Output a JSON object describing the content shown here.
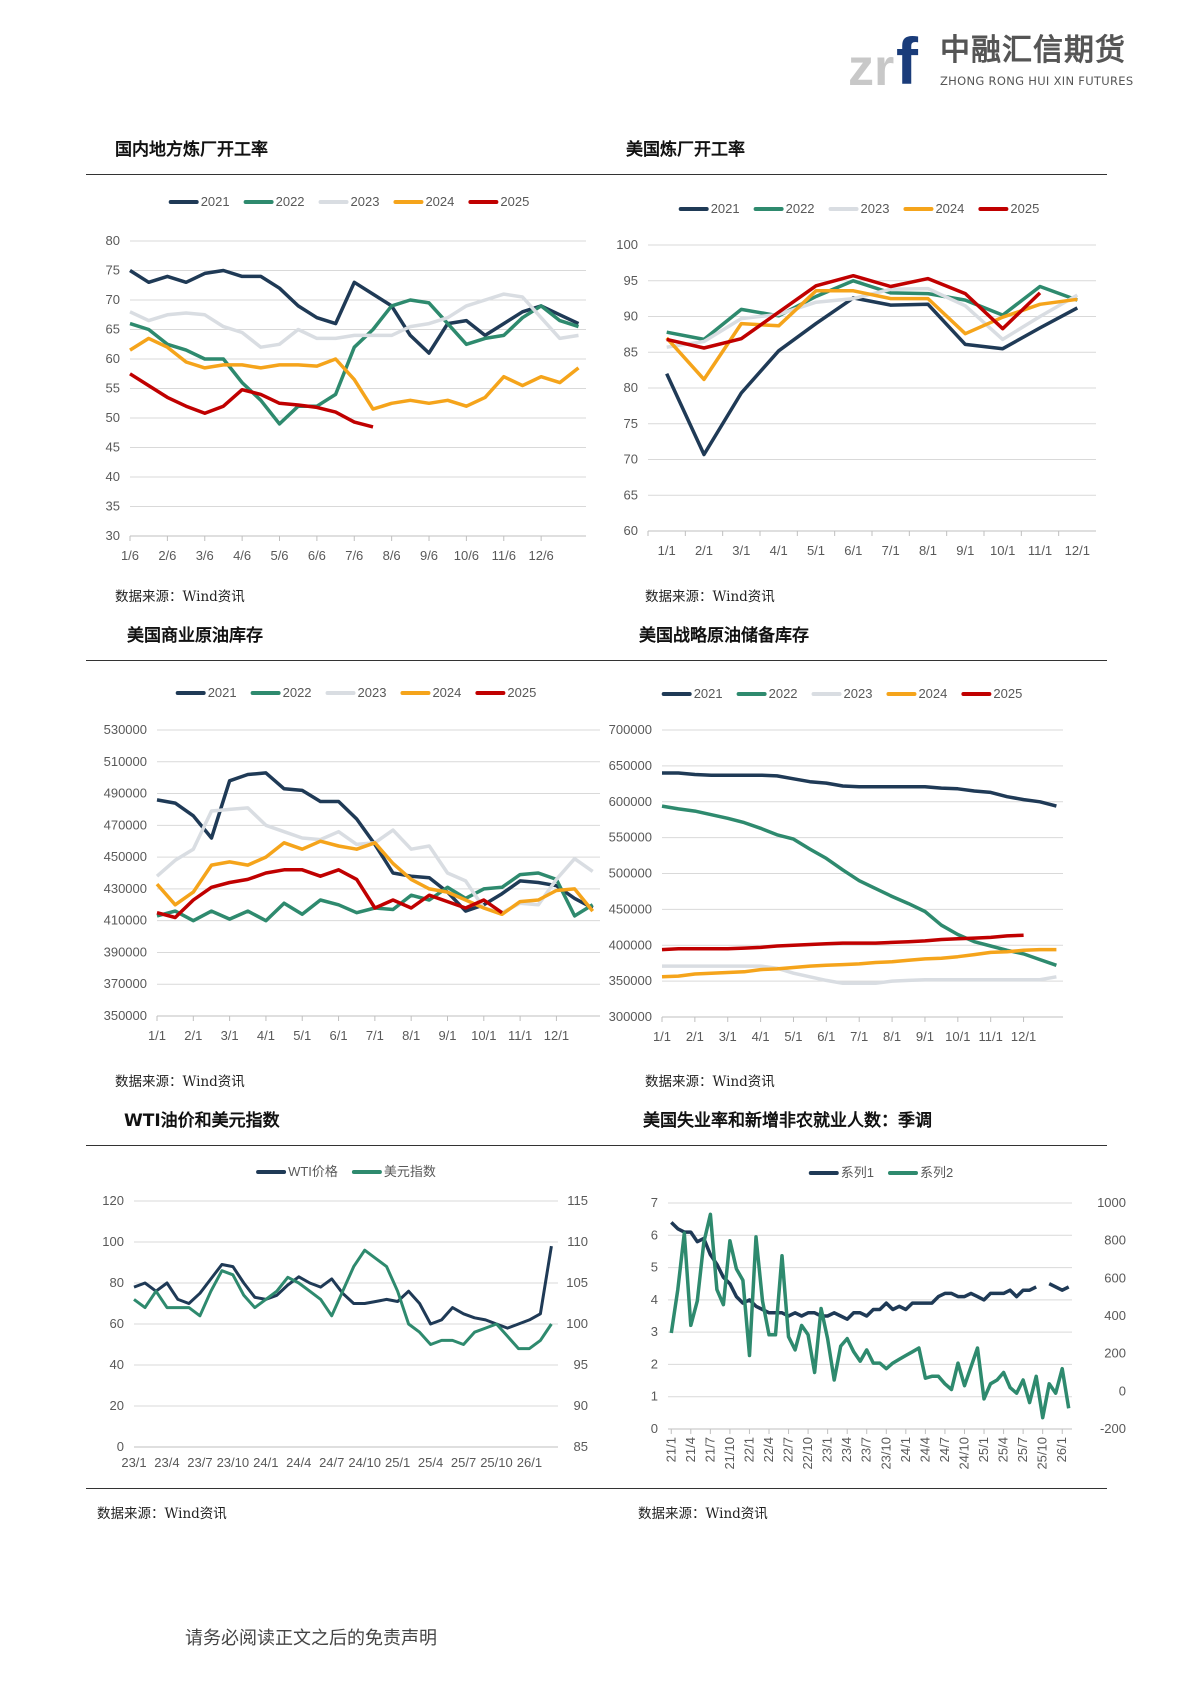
{
  "header": {
    "logo_mark": "zrf",
    "logo_cn": "中融汇信期货",
    "logo_en": "ZHONG RONG HUI XIN FUTURES",
    "logo_colors": {
      "gray": "#c8c8c8",
      "blue": "#1a3c7a"
    }
  },
  "sections": [
    {
      "title": "国内地方炼厂开工率",
      "source": "数据来源：Wind资讯"
    },
    {
      "title": "美国炼厂开工率",
      "source": "数据来源：Wind资讯"
    },
    {
      "title": "美国商业原油库存",
      "source": "数据来源：Wind资讯"
    },
    {
      "title": "美国战略原油储备库存",
      "source": "数据来源：Wind资讯"
    },
    {
      "title": "WTI油价和美元指数",
      "source": "数据来源：Wind资讯"
    },
    {
      "title": "美国失业率和新增非农就业人数：季调",
      "source": "数据来源：Wind资讯"
    }
  ],
  "footer": {
    "disclaimer": "请务必阅读正文之后的免责声明"
  },
  "chart_data": [
    {
      "type": "line",
      "xaxis": "continuous",
      "grid": true,
      "legend": "top",
      "ylim": [
        30,
        80
      ],
      "ytick_step": 5,
      "xticks": [
        "1/6",
        "2/6",
        "3/6",
        "4/6",
        "5/6",
        "6/6",
        "7/6",
        "8/6",
        "9/6",
        "10/6",
        "11/6",
        "12/6"
      ],
      "series": [
        {
          "name": "2021",
          "color": "#1f3a56",
          "values": [
            75,
            73,
            74,
            73,
            74.5,
            75,
            74,
            74,
            72,
            69,
            67,
            66,
            73,
            71,
            69,
            64,
            61,
            66,
            66.5,
            64,
            66,
            68,
            69,
            67.5,
            66
          ]
        },
        {
          "name": "2022",
          "color": "#2e8a6e",
          "values": [
            66,
            65,
            62.5,
            61.5,
            60,
            60,
            56,
            53,
            49,
            52,
            52,
            54,
            62,
            65,
            69,
            70,
            69.5,
            66,
            62.5,
            63.5,
            64,
            67,
            69,
            66.5,
            65.5
          ]
        },
        {
          "name": "2023",
          "color": "#d9dde2",
          "values": [
            68,
            66.5,
            67.5,
            67.8,
            67.5,
            65.5,
            64.5,
            62,
            62.5,
            65,
            63.5,
            63.5,
            64,
            64,
            64,
            65.5,
            66,
            67,
            69,
            70,
            71,
            70.5,
            67,
            63.5,
            64
          ]
        },
        {
          "name": "2024",
          "color": "#f5a41b",
          "values": [
            61.5,
            63.5,
            62,
            59.5,
            58.5,
            59,
            59,
            58.5,
            59,
            59,
            58.8,
            60,
            56.5,
            51.5,
            52.5,
            53,
            52.5,
            53,
            52,
            53.5,
            57,
            55.5,
            57,
            56,
            58.5
          ]
        },
        {
          "name": "2025",
          "color": "#c00000",
          "values": [
            57.5,
            55.5,
            53.5,
            52,
            50.8,
            52,
            54.8,
            54,
            52.5,
            52.2,
            51.8,
            51,
            49.3,
            48.5
          ]
        }
      ]
    },
    {
      "type": "line",
      "xaxis": "category",
      "grid": true,
      "legend": "top",
      "ylim": [
        60,
        100
      ],
      "ytick_step": 5,
      "xticks": [
        "1/1",
        "2/1",
        "3/1",
        "4/1",
        "5/1",
        "6/1",
        "7/1",
        "8/1",
        "9/1",
        "10/1",
        "11/1",
        "12/1"
      ],
      "series": [
        {
          "name": "2021",
          "color": "#1f3a56",
          "values": [
            82,
            70.7,
            79.3,
            85.2,
            89,
            92.6,
            91.6,
            91.7,
            86.1,
            85.5,
            88.4,
            91.2
          ]
        },
        {
          "name": "2022",
          "color": "#2e8a6e",
          "values": [
            87.8,
            86.8,
            91,
            90.1,
            92.8,
            95,
            93.3,
            93.2,
            92.3,
            90.2,
            94.2,
            92.3
          ]
        },
        {
          "name": "2023",
          "color": "#d9dde2",
          "values": [
            85.7,
            86.5,
            89.7,
            90.3,
            92,
            92.5,
            93.8,
            93.9,
            91.5,
            86.8,
            90,
            93
          ]
        },
        {
          "name": "2024",
          "color": "#f5a41b",
          "values": [
            87,
            81.2,
            89,
            88.7,
            93.6,
            93.6,
            92.5,
            92.5,
            87.6,
            89.9,
            91.7,
            92.4
          ]
        },
        {
          "name": "2025",
          "color": "#c00000",
          "values": [
            86.8,
            85.6,
            86.9,
            90.6,
            94.3,
            95.7,
            94.2,
            95.3,
            93.2,
            88.3,
            93.3
          ]
        }
      ]
    },
    {
      "type": "line",
      "xaxis": "continuous",
      "grid": true,
      "legend": "top",
      "ylim": [
        350000,
        530000
      ],
      "ytick_step": 20000,
      "xticks": [
        "1/1",
        "2/1",
        "3/1",
        "4/1",
        "5/1",
        "6/1",
        "7/1",
        "8/1",
        "9/1",
        "10/1",
        "11/1",
        "12/1"
      ],
      "series": [
        {
          "name": "2021",
          "color": "#1f3a56",
          "values": [
            486000,
            484000,
            476000,
            462000,
            498000,
            502000,
            503000,
            493000,
            492000,
            485000,
            485000,
            474000,
            458000,
            440000,
            438000,
            437000,
            428000,
            416000,
            420000,
            427000,
            435000,
            434000,
            432000,
            424000,
            418000
          ]
        },
        {
          "name": "2022",
          "color": "#2e8a6e",
          "values": [
            413000,
            416000,
            410000,
            416000,
            411000,
            416000,
            410000,
            421000,
            414000,
            423000,
            420000,
            415000,
            418000,
            417000,
            426000,
            423000,
            431000,
            424000,
            430000,
            431000,
            439000,
            440000,
            436000,
            413000,
            420000
          ]
        },
        {
          "name": "2023",
          "color": "#d9dde2",
          "values": [
            438000,
            448000,
            455000,
            479000,
            480000,
            481000,
            470000,
            466000,
            462000,
            461000,
            466000,
            458000,
            459000,
            467000,
            455000,
            457000,
            440000,
            435000,
            418000,
            415000,
            421000,
            420000,
            436000,
            449000,
            441000
          ]
        },
        {
          "name": "2024",
          "color": "#f5a41b",
          "values": [
            433000,
            420000,
            428000,
            445000,
            447000,
            445000,
            450000,
            459000,
            455000,
            460000,
            457000,
            455000,
            459000,
            446000,
            436000,
            430000,
            428000,
            423000,
            418000,
            414000,
            422000,
            423000,
            429000,
            430000,
            416000
          ]
        },
        {
          "name": "2025",
          "color": "#c00000",
          "values": [
            415000,
            412000,
            423000,
            431000,
            434000,
            436000,
            440000,
            442000,
            442000,
            438000,
            442000,
            436000,
            418000,
            423000,
            418000,
            426000,
            422000,
            418000,
            423000,
            415000
          ]
        }
      ]
    },
    {
      "type": "line",
      "xaxis": "continuous",
      "grid": true,
      "legend": "top",
      "ylim": [
        300000,
        700000
      ],
      "ytick_step": 50000,
      "xticks": [
        "1/1",
        "2/1",
        "3/1",
        "4/1",
        "5/1",
        "6/1",
        "7/1",
        "8/1",
        "9/1",
        "10/1",
        "11/1",
        "12/1"
      ],
      "series": [
        {
          "name": "2021",
          "color": "#1f3a56",
          "values": [
            640000,
            640000,
            638000,
            637000,
            637000,
            637000,
            637000,
            636000,
            632000,
            628000,
            626000,
            622000,
            621000,
            621000,
            621000,
            621000,
            621000,
            619000,
            618000,
            615000,
            613000,
            607000,
            603000,
            600000,
            594000
          ]
        },
        {
          "name": "2022",
          "color": "#2e8a6e",
          "values": [
            594000,
            590000,
            587000,
            582000,
            577000,
            571000,
            563000,
            554000,
            548000,
            534000,
            521000,
            505000,
            490000,
            479000,
            468000,
            458000,
            447000,
            428000,
            415000,
            405000,
            399000,
            393000,
            388000,
            380000,
            372000
          ]
        },
        {
          "name": "2023",
          "color": "#d9dde2",
          "values": [
            371000,
            371000,
            371000,
            371000,
            371000,
            371000,
            371000,
            368000,
            361000,
            356000,
            351000,
            347000,
            347000,
            347000,
            350000,
            351000,
            352000,
            352000,
            352000,
            352000,
            352000,
            352000,
            352000,
            352000,
            356000
          ]
        },
        {
          "name": "2024",
          "color": "#f5a41b",
          "values": [
            356000,
            357000,
            360000,
            361000,
            362000,
            363000,
            366000,
            367000,
            369000,
            371000,
            372000,
            373000,
            374000,
            376000,
            377000,
            379000,
            381000,
            382000,
            384000,
            387000,
            390000,
            391000,
            393000,
            394000,
            394000
          ]
        },
        {
          "name": "2025",
          "color": "#c00000",
          "values": [
            394000,
            395000,
            395000,
            395000,
            395000,
            396000,
            397000,
            399000,
            400000,
            401000,
            402000,
            403000,
            403000,
            403000,
            404000,
            405000,
            406000,
            408000,
            409000,
            410000,
            411000,
            413000,
            414000
          ]
        }
      ]
    },
    {
      "type": "line",
      "xaxis": "monthly",
      "grid": true,
      "legend": "top",
      "ylim": [
        0,
        120
      ],
      "ytick_step": 20,
      "y2lim": [
        85,
        115
      ],
      "y2tick_step": 5,
      "xticks": [
        "23/1",
        "23/4",
        "23/7",
        "23/10",
        "24/1",
        "24/4",
        "24/7",
        "24/10",
        "25/1",
        "25/4",
        "25/7",
        "25/10",
        "26/1"
      ],
      "series": [
        {
          "name": "WTI价格",
          "color": "#1f3a56",
          "axis": "left",
          "values": [
            78,
            80,
            76,
            80,
            72,
            70,
            75,
            82,
            89,
            88,
            80,
            73,
            72,
            74,
            79,
            83,
            80,
            78,
            82,
            75,
            70,
            70,
            71,
            72,
            71,
            76,
            70,
            60,
            62,
            68,
            65,
            63,
            62,
            60,
            58,
            60,
            62,
            65,
            98
          ]
        },
        {
          "name": "美元指数",
          "color": "#2e8a6e",
          "axis": "right",
          "values": [
            103,
            102,
            104,
            102,
            102,
            102,
            101,
            104,
            106.5,
            106,
            103.5,
            102,
            103,
            104,
            105.7,
            105,
            104,
            103,
            101,
            104,
            107,
            109,
            108,
            107,
            104,
            100,
            99,
            97.5,
            98,
            98,
            97.5,
            99,
            99.5,
            100,
            98.5,
            97,
            97,
            98,
            100
          ]
        }
      ]
    },
    {
      "type": "line",
      "xaxis": "category",
      "grid": true,
      "legend": "top",
      "ylim": [
        0,
        7
      ],
      "ytick_step": 1,
      "y2lim": [
        -200,
        1000
      ],
      "y2tick_step": 200,
      "xticks": [
        "21/1",
        "21/4",
        "21/7",
        "21/10",
        "22/1",
        "22/4",
        "22/7",
        "22/10",
        "23/1",
        "23/4",
        "23/7",
        "23/10",
        "24/1",
        "24/4",
        "24/7",
        "24/10",
        "25/1",
        "25/4",
        "25/7",
        "25/10",
        "26/1"
      ],
      "series": [
        {
          "name": "系列1",
          "color": "#1f3a56",
          "axis": "left",
          "values": [
            6.4,
            6.2,
            6.1,
            6.1,
            5.8,
            5.9,
            5.4,
            5.1,
            4.7,
            4.5,
            4.1,
            3.9,
            4.0,
            3.8,
            3.7,
            3.6,
            3.6,
            3.6,
            3.5,
            3.6,
            3.5,
            3.6,
            3.6,
            3.5,
            3.5,
            3.6,
            3.5,
            3.4,
            3.6,
            3.6,
            3.5,
            3.7,
            3.7,
            3.9,
            3.7,
            3.8,
            3.7,
            3.9,
            3.9,
            3.9,
            3.9,
            4.1,
            4.2,
            4.2,
            4.1,
            4.1,
            4.2,
            4.1,
            4.0,
            4.2,
            4.2,
            4.2,
            4.3,
            4.1,
            4.3,
            4.3,
            4.4,
            null,
            4.5,
            4.4,
            4.3,
            4.4
          ]
        },
        {
          "name": "系列2",
          "color": "#2e8a6e",
          "axis": "right",
          "values": [
            310,
            540,
            840,
            350,
            480,
            790,
            940,
            540,
            460,
            800,
            650,
            590,
            190,
            820,
            480,
            300,
            300,
            720,
            290,
            220,
            350,
            300,
            100,
            440,
            280,
            60,
            240,
            280,
            210,
            160,
            220,
            150,
            150,
            120,
            150,
            170,
            190,
            210,
            230,
            70,
            80,
            80,
            40,
            10,
            150,
            30,
            130,
            230,
            -40,
            40,
            60,
            100,
            20,
            -10,
            60,
            -60,
            80,
            -140,
            40,
            -10,
            120,
            -90
          ]
        }
      ]
    }
  ]
}
